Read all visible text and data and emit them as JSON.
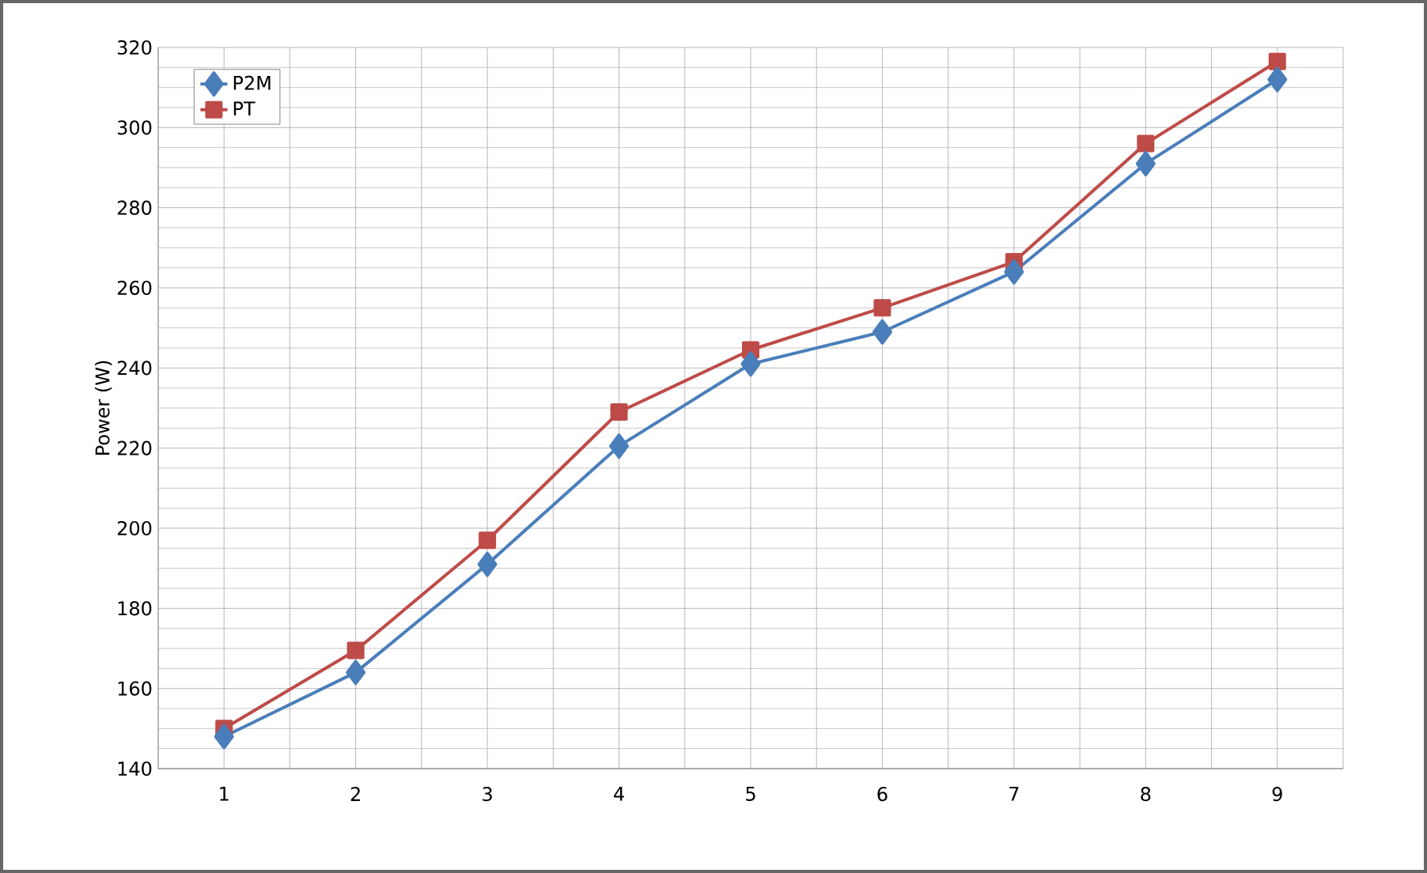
{
  "chart_data": {
    "type": "line",
    "ylabel": "Power (W)",
    "categories": [
      "1",
      "2",
      "3",
      "4",
      "5",
      "6",
      "7",
      "8",
      "9"
    ],
    "series": [
      {
        "name": "P2M",
        "color": "#4a7ebb",
        "marker": "diamond",
        "values": [
          148,
          164,
          191,
          220.5,
          241,
          249,
          264,
          291,
          312
        ]
      },
      {
        "name": "PT",
        "color": "#be4b48",
        "marker": "square",
        "values": [
          150,
          169.5,
          197,
          229,
          244.5,
          255,
          266.5,
          296,
          316.5
        ]
      }
    ],
    "ylim": [
      140,
      320
    ],
    "yticks": [
      140,
      160,
      180,
      200,
      220,
      240,
      260,
      280,
      300,
      320
    ],
    "grid": true,
    "legend": "top left",
    "line_style": "solid"
  }
}
